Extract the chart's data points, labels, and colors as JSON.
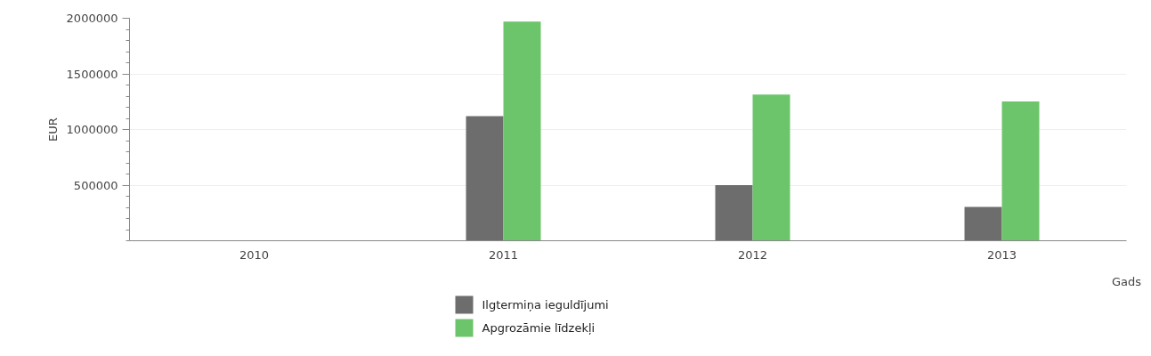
{
  "chart_data": {
    "type": "bar",
    "xlabel": "Gads",
    "ylabel": "EUR",
    "categories": [
      "2010",
      "2011",
      "2012",
      "2013"
    ],
    "series": [
      {
        "name": "Ilgtermiņa ieguldījumi",
        "color": "#6d6d6d",
        "values": [
          null,
          1120000,
          500000,
          305000
        ]
      },
      {
        "name": "Apgrozāmie līdzekļi",
        "color": "#6cc56a",
        "values": [
          null,
          1970000,
          1315000,
          1252000
        ]
      }
    ],
    "ylim": [
      0,
      2000000
    ],
    "yticks": [
      500000,
      1000000,
      1500000,
      2000000
    ],
    "grid": "y",
    "legend": "bottom"
  }
}
